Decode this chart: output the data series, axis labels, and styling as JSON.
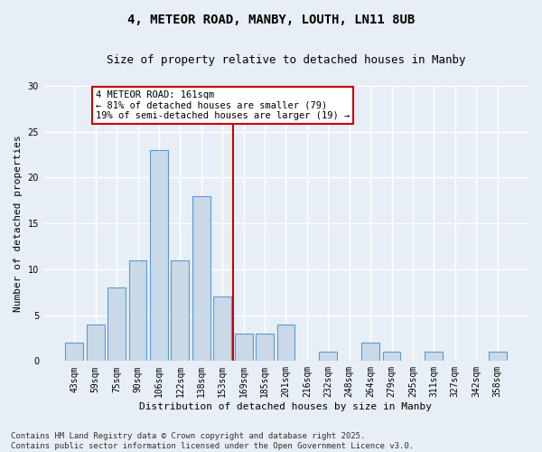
{
  "title_line1": "4, METEOR ROAD, MANBY, LOUTH, LN11 8UB",
  "title_line2": "Size of property relative to detached houses in Manby",
  "xlabel": "Distribution of detached houses by size in Manby",
  "ylabel": "Number of detached properties",
  "bar_labels": [
    "43sqm",
    "59sqm",
    "75sqm",
    "90sqm",
    "106sqm",
    "122sqm",
    "138sqm",
    "153sqm",
    "169sqm",
    "185sqm",
    "201sqm",
    "216sqm",
    "232sqm",
    "248sqm",
    "264sqm",
    "279sqm",
    "295sqm",
    "311sqm",
    "327sqm",
    "342sqm",
    "358sqm"
  ],
  "bar_values": [
    2,
    4,
    8,
    11,
    23,
    11,
    18,
    7,
    3,
    3,
    4,
    0,
    1,
    0,
    2,
    1,
    0,
    1,
    0,
    0,
    1
  ],
  "bar_color": "#c9d9e8",
  "bar_edge_color": "#5b9bd5",
  "vline_x_index": 7,
  "vline_color": "#cc0000",
  "ylim": [
    0,
    30
  ],
  "yticks": [
    0,
    5,
    10,
    15,
    20,
    25,
    30
  ],
  "bg_color": "#e8eef5",
  "grid_color": "#ffffff",
  "annotation_text": "4 METEOR ROAD: 161sqm\n← 81% of detached houses are smaller (79)\n19% of semi-detached houses are larger (19) →",
  "annotation_box_color": "#ffffff",
  "annotation_box_edge_color": "#cc0000",
  "footnote": "Contains HM Land Registry data © Crown copyright and database right 2025.\nContains public sector information licensed under the Open Government Licence v3.0.",
  "title_fontsize": 10,
  "subtitle_fontsize": 9,
  "ylabel_fontsize": 8,
  "xlabel_fontsize": 8,
  "tick_fontsize": 7,
  "annotation_fontsize": 7.5,
  "footnote_fontsize": 6.5
}
